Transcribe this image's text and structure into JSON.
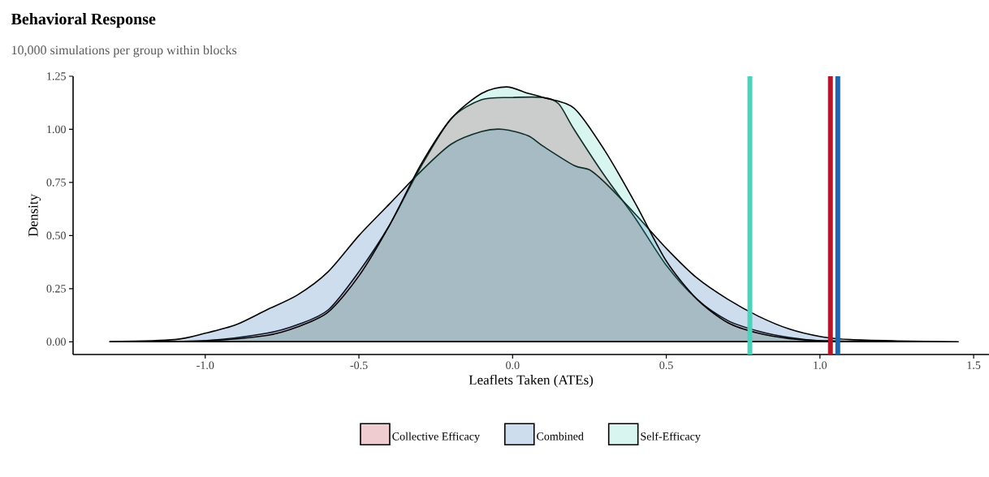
{
  "chart_data": {
    "type": "area",
    "title": "Behavioral Response",
    "subtitle": "10,000 simulations per group within blocks",
    "xlabel": "Leaflets Taken (ATEs)",
    "ylabel": "Density",
    "xlim": [
      -1.43,
      1.55
    ],
    "ylim": [
      -0.06,
      1.25
    ],
    "xticks": [
      {
        "value": -1.0,
        "label": "-1.0"
      },
      {
        "value": -0.5,
        "label": "-0.5"
      },
      {
        "value": 0.0,
        "label": "0.0"
      },
      {
        "value": 0.5,
        "label": "0.5"
      },
      {
        "value": 1.0,
        "label": "1.0"
      },
      {
        "value": 1.5,
        "label": "1.5"
      }
    ],
    "yticks": [
      {
        "value": 0.0,
        "label": "0.00"
      },
      {
        "value": 0.25,
        "label": "0.25"
      },
      {
        "value": 0.5,
        "label": "0.50"
      },
      {
        "value": 0.75,
        "label": "0.75"
      },
      {
        "value": 1.0,
        "label": "1.00"
      },
      {
        "value": 1.25,
        "label": "1.25"
      }
    ],
    "legend": "bottom",
    "series": [
      {
        "name": "Collective Efficacy",
        "color": "#b2182b",
        "x": [
          -1.31,
          -1.0,
          -0.8,
          -0.7,
          -0.6,
          -0.5,
          -0.4,
          -0.3,
          -0.2,
          -0.1,
          0.0,
          0.1,
          0.15,
          0.2,
          0.3,
          0.4,
          0.5,
          0.6,
          0.7,
          0.8,
          0.9,
          1.0,
          1.2
        ],
        "values": [
          0,
          0.005,
          0.04,
          0.08,
          0.15,
          0.33,
          0.55,
          0.82,
          1.05,
          1.14,
          1.15,
          1.15,
          1.12,
          1.0,
          0.78,
          0.58,
          0.36,
          0.2,
          0.1,
          0.05,
          0.02,
          0.005,
          0
        ]
      },
      {
        "name": "Combined",
        "color": "#2166ac",
        "x": [
          -1.31,
          -1.1,
          -1.0,
          -0.9,
          -0.8,
          -0.7,
          -0.6,
          -0.5,
          -0.4,
          -0.3,
          -0.2,
          -0.1,
          -0.03,
          0.05,
          0.1,
          0.2,
          0.25,
          0.3,
          0.4,
          0.5,
          0.6,
          0.7,
          0.8,
          0.9,
          1.0,
          1.1,
          1.25,
          1.45
        ],
        "values": [
          0,
          0.01,
          0.04,
          0.08,
          0.15,
          0.22,
          0.33,
          0.5,
          0.65,
          0.8,
          0.93,
          0.99,
          1.0,
          0.97,
          0.92,
          0.83,
          0.81,
          0.75,
          0.6,
          0.44,
          0.3,
          0.2,
          0.12,
          0.06,
          0.025,
          0.01,
          0.004,
          0
        ]
      },
      {
        "name": "Self-Efficacy",
        "color": "#4fd1bb",
        "x": [
          -1.31,
          -1.0,
          -0.8,
          -0.7,
          -0.6,
          -0.5,
          -0.4,
          -0.3,
          -0.2,
          -0.1,
          -0.02,
          0.05,
          0.1,
          0.2,
          0.3,
          0.4,
          0.5,
          0.6,
          0.7,
          0.8,
          0.9,
          1.0,
          1.2
        ],
        "values": [
          0,
          0.005,
          0.03,
          0.07,
          0.14,
          0.31,
          0.55,
          0.83,
          1.05,
          1.17,
          1.2,
          1.17,
          1.15,
          1.1,
          0.9,
          0.65,
          0.38,
          0.2,
          0.09,
          0.04,
          0.015,
          0.005,
          0
        ]
      }
    ],
    "ref_lines": [
      {
        "axis": "x",
        "value": 0.772,
        "color": "#4fd1bb"
      },
      {
        "axis": "x",
        "value": 1.034,
        "color": "#b2182b"
      },
      {
        "axis": "x",
        "value": 1.058,
        "color": "#2166ac"
      }
    ]
  }
}
